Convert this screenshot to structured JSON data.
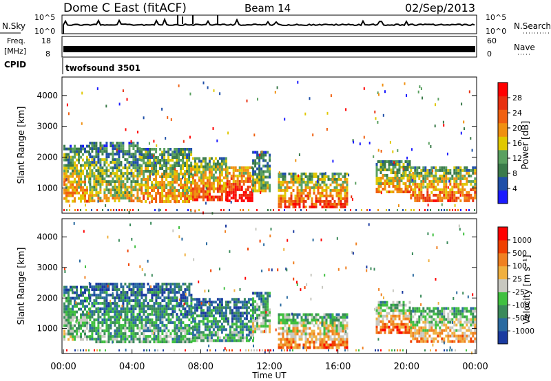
{
  "header": {
    "station": "Dome C East (fitACF)",
    "beam": "Beam 14",
    "date": "02/Sep/2013"
  },
  "panels": {
    "nsky": {
      "label": "N.Sky",
      "ticks_left": [
        "10^5",
        "10^0"
      ],
      "ticks_right": [
        "10^5",
        "10^0"
      ],
      "right_label": "N.Search"
    },
    "freq": {
      "label_top": "Freq.",
      "label_bottom": "[MHz]",
      "ticks_left": [
        "18",
        "8"
      ],
      "ticks_right": [
        "60",
        "0"
      ],
      "right_label": "Nave"
    },
    "cpid": {
      "label": "CPID",
      "value": "twofsound 3501"
    }
  },
  "colors": {
    "power_scale": [
      "#1a1aff",
      "#1f4fa8",
      "#3a7a4a",
      "#5aa060",
      "#e0c800",
      "#f09010",
      "#f06010",
      "#e83010",
      "#ff0000"
    ],
    "velocity_scale": [
      "#ff0000",
      "#f04000",
      "#f08020",
      "#f0b040",
      "#c8c8c0",
      "#40c040",
      "#3a8a5a",
      "#2a6aa0",
      "#1a3aa0"
    ]
  },
  "chart_data": [
    {
      "type": "heatmap",
      "name": "power",
      "ylabel": "Slant Range [km]",
      "ylim": [
        180,
        4600
      ],
      "yticks": [
        "1000",
        "2000",
        "3000",
        "4000"
      ],
      "xlim_hours": [
        0,
        24
      ],
      "colorbar_label": "Power [dB]",
      "colorbar_ticks": [
        "28",
        "24",
        "20",
        "16",
        "12",
        "8",
        "4"
      ],
      "colorbar_range": [
        0,
        32
      ],
      "echo_regions": [
        {
          "t0": 0.0,
          "t1": 1.5,
          "r0": 600,
          "r1": 2400,
          "level": 0.55
        },
        {
          "t0": 1.5,
          "t1": 4.5,
          "r0": 600,
          "r1": 2500,
          "level": 0.45
        },
        {
          "t0": 4.5,
          "t1": 7.5,
          "r0": 600,
          "r1": 2300,
          "level": 0.55
        },
        {
          "t0": 7.5,
          "t1": 9.5,
          "r0": 600,
          "r1": 2000,
          "level": 0.7
        },
        {
          "t0": 9.5,
          "t1": 11.0,
          "r0": 600,
          "r1": 1700,
          "level": 0.9
        },
        {
          "t0": 11.0,
          "t1": 12.0,
          "r0": 900,
          "r1": 2200,
          "level": 0.4
        },
        {
          "t0": 12.5,
          "t1": 16.5,
          "r0": 400,
          "r1": 1500,
          "level": 0.7
        },
        {
          "t0": 18.2,
          "t1": 20.2,
          "r0": 900,
          "r1": 1900,
          "level": 0.55
        },
        {
          "t0": 20.2,
          "t1": 24.0,
          "r0": 600,
          "r1": 1700,
          "level": 0.65
        }
      ]
    },
    {
      "type": "heatmap",
      "name": "velocity",
      "ylabel": "Slant Range [km]",
      "ylim": [
        180,
        4600
      ],
      "yticks": [
        "1000",
        "2000",
        "3000",
        "4000"
      ],
      "xlim_hours": [
        0,
        24
      ],
      "xticks": [
        "00:00",
        "04:00",
        "08:00",
        "12:00",
        "16:00",
        "20:00",
        "00:00"
      ],
      "xlabel": "Time UT",
      "colorbar_label": "Velocity [m s⁻¹]",
      "colorbar_ticks": [
        "1000",
        "500",
        "100",
        "25",
        "-25",
        "-100",
        "-500",
        "-1000"
      ],
      "echo_regions": [
        {
          "t0": 0.0,
          "t1": 1.5,
          "r0": 600,
          "r1": 2400,
          "level": 0.4
        },
        {
          "t0": 1.5,
          "t1": 7.5,
          "r0": 600,
          "r1": 2500,
          "level": 0.3
        },
        {
          "t0": 7.5,
          "t1": 11.0,
          "r0": 600,
          "r1": 2000,
          "level": 0.3
        },
        {
          "t0": 11.0,
          "t1": 12.0,
          "r0": 900,
          "r1": 2200,
          "level": 0.45
        },
        {
          "t0": 12.5,
          "t1": 16.5,
          "r0": 400,
          "r1": 1500,
          "level": 0.65
        },
        {
          "t0": 18.2,
          "t1": 20.2,
          "r0": 900,
          "r1": 1900,
          "level": 0.7
        },
        {
          "t0": 20.2,
          "t1": 24.0,
          "r0": 600,
          "r1": 1700,
          "level": 0.6
        }
      ]
    }
  ]
}
